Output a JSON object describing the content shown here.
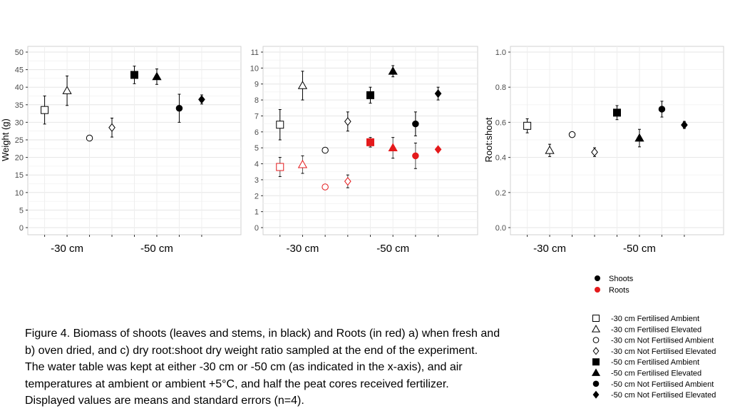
{
  "chart_data": [
    {
      "type": "scatter",
      "panel": "a",
      "ylabel": "Weight (g)",
      "ylim": [
        0,
        50
      ],
      "yticks": [
        0,
        5,
        10,
        15,
        20,
        25,
        30,
        35,
        40,
        45,
        50
      ],
      "categories": [
        "-30 cm",
        "-50 cm"
      ],
      "grid": true,
      "series": [
        {
          "name": "Shoots",
          "color": "#000000",
          "points": [
            {
              "treatment": "-30 cm Fertilised Ambient",
              "y": 33.5,
              "err": 4.0
            },
            {
              "treatment": "-30 cm Fertilised Elevated",
              "y": 39.0,
              "err": 4.2
            },
            {
              "treatment": "-30 cm Not Fertilised Ambient",
              "y": 25.5,
              "err": 0.8
            },
            {
              "treatment": "-30 cm Not Fertilised Elevated",
              "y": 28.5,
              "err": 2.7
            },
            {
              "treatment": "-50 cm Fertilised Ambient",
              "y": 43.5,
              "err": 2.5
            },
            {
              "treatment": "-50 cm Fertilised Elevated",
              "y": 43.0,
              "err": 2.2
            },
            {
              "treatment": "-50 cm Not Fertilised Ambient",
              "y": 34.0,
              "err": 4.0
            },
            {
              "treatment": "-50 cm Not Fertilised Elevated",
              "y": 36.5,
              "err": 1.3
            }
          ]
        }
      ]
    },
    {
      "type": "scatter",
      "panel": "b",
      "ylabel": "",
      "ylim": [
        0,
        11
      ],
      "yticks": [
        0,
        1,
        2,
        3,
        4,
        5,
        6,
        7,
        8,
        9,
        10,
        11
      ],
      "categories": [
        "-30 cm",
        "-50 cm"
      ],
      "grid": true,
      "series": [
        {
          "name": "Shoots",
          "color": "#000000",
          "points": [
            {
              "treatment": "-30 cm Fertilised Ambient",
              "y": 6.45,
              "err": 0.95
            },
            {
              "treatment": "-30 cm Fertilised Elevated",
              "y": 8.9,
              "err": 0.9
            },
            {
              "treatment": "-30 cm Not Fertilised Ambient",
              "y": 4.85,
              "err": 0.15
            },
            {
              "treatment": "-30 cm Not Fertilised Elevated",
              "y": 6.65,
              "err": 0.6
            },
            {
              "treatment": "-50 cm Fertilised Ambient",
              "y": 8.3,
              "err": 0.5
            },
            {
              "treatment": "-50 cm Fertilised Elevated",
              "y": 9.8,
              "err": 0.35
            },
            {
              "treatment": "-50 cm Not Fertilised Ambient",
              "y": 6.5,
              "err": 0.75
            },
            {
              "treatment": "-50 cm Not Fertilised Elevated",
              "y": 8.4,
              "err": 0.4
            }
          ]
        },
        {
          "name": "Roots",
          "color": "#e41a1c",
          "points": [
            {
              "treatment": "-30 cm Fertilised Ambient",
              "y": 3.8,
              "err": 0.6
            },
            {
              "treatment": "-30 cm Fertilised Elevated",
              "y": 3.95,
              "err": 0.55
            },
            {
              "treatment": "-30 cm Not Fertilised Ambient",
              "y": 2.55,
              "err": 0.1
            },
            {
              "treatment": "-30 cm Not Fertilised Elevated",
              "y": 2.9,
              "err": 0.4
            },
            {
              "treatment": "-50 cm Fertilised Ambient",
              "y": 5.35,
              "err": 0.3
            },
            {
              "treatment": "-50 cm Fertilised Elevated",
              "y": 5.0,
              "err": 0.65
            },
            {
              "treatment": "-50 cm Not Fertilised Ambient",
              "y": 4.5,
              "err": 0.8
            },
            {
              "treatment": "-50 cm Not Fertilised Elevated",
              "y": 4.9,
              "err": 0.08
            }
          ]
        }
      ]
    },
    {
      "type": "scatter",
      "panel": "c",
      "ylabel": "Root:shoot",
      "ylim": [
        0,
        1.0
      ],
      "yticks": [
        0.0,
        0.2,
        0.4,
        0.6,
        0.8,
        1.0
      ],
      "categories": [
        "-30 cm",
        "-50 cm"
      ],
      "grid": true,
      "series": [
        {
          "name": "Root:shoot",
          "color": "#000000",
          "points": [
            {
              "treatment": "-30 cm Fertilised Ambient",
              "y": 0.58,
              "err": 0.04
            },
            {
              "treatment": "-30 cm Fertilised Elevated",
              "y": 0.44,
              "err": 0.035
            },
            {
              "treatment": "-30 cm Not Fertilised Ambient",
              "y": 0.53,
              "err": 0.015
            },
            {
              "treatment": "-30 cm Not Fertilised Elevated",
              "y": 0.43,
              "err": 0.025
            },
            {
              "treatment": "-50 cm Fertilised Ambient",
              "y": 0.655,
              "err": 0.04
            },
            {
              "treatment": "-50 cm Fertilised Elevated",
              "y": 0.51,
              "err": 0.05
            },
            {
              "treatment": "-50 cm Not Fertilised Ambient",
              "y": 0.675,
              "err": 0.045
            },
            {
              "treatment": "-50 cm Not Fertilised Elevated",
              "y": 0.585,
              "err": 0.02
            }
          ]
        }
      ]
    }
  ],
  "legend_colors": [
    {
      "label": "Shoots",
      "color": "#000000"
    },
    {
      "label": "Roots",
      "color": "#e41a1c"
    }
  ],
  "legend_shapes": [
    {
      "label": "-30 cm Fertilised Ambient",
      "shape": "open-square"
    },
    {
      "label": "-30 cm Fertilised Elevated",
      "shape": "open-triangle"
    },
    {
      "label": "-30 cm Not Fertilised Ambient",
      "shape": "open-circle"
    },
    {
      "label": "-30 cm Not Fertilised Elevated",
      "shape": "open-diamond"
    },
    {
      "label": "-50 cm Fertilised Ambient",
      "shape": "filled-square"
    },
    {
      "label": "-50 cm Fertilised Elevated",
      "shape": "filled-triangle"
    },
    {
      "label": "-50 cm Not Fertilised Ambient",
      "shape": "filled-circle"
    },
    {
      "label": "-50 cm Not Fertilised Elevated",
      "shape": "filled-diamond"
    }
  ],
  "caption": {
    "line1": "Figure 4. Biomass of shoots (leaves and stems, in black) and Roots (in red) a) when fresh and",
    "line2": "b) oven dried, and c) dry root:shoot dry weight ratio sampled at the end of the experiment.",
    "line3": "The water table was kept at either -30 cm or -50 cm (as indicated in the x-axis), and air",
    "line4": "temperatures at ambient or ambient +5°C, and half the peat cores received fertilizer.",
    "line5": "Displayed values are means and standard errors (n=4)."
  }
}
